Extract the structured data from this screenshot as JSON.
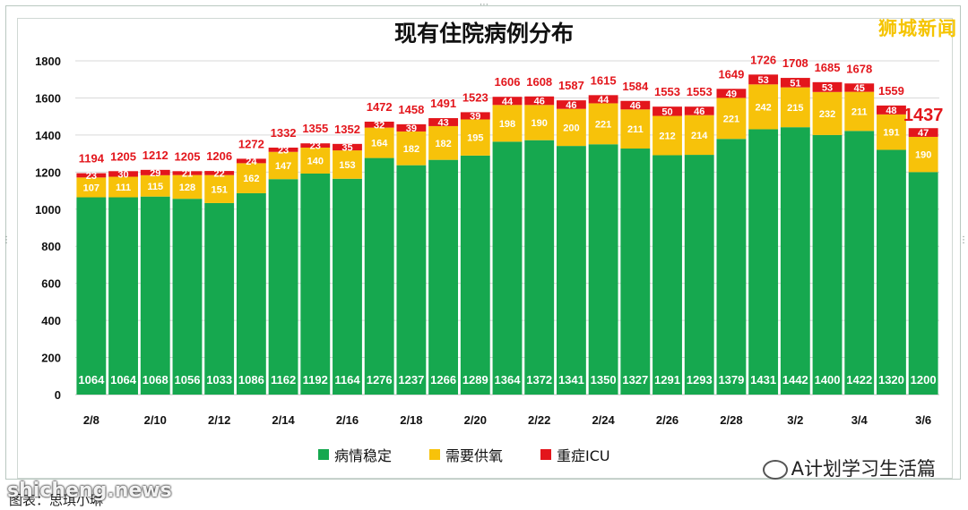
{
  "title": "现有住院病例分布",
  "brand": "狮城新闻",
  "wechat_label": "A计划学习生活篇",
  "watermark": "shicheng.news",
  "caption": "图表：思琪小琳",
  "colors": {
    "stable": "#16a84f",
    "oxygen": "#f7c20a",
    "icu": "#e3161c",
    "total_label": "#e3161c"
  },
  "chart_data": {
    "type": "bar",
    "stacked": true,
    "categories": [
      "2/8",
      "2/9",
      "2/10",
      "2/11",
      "2/12",
      "2/13",
      "2/14",
      "2/15",
      "2/16",
      "2/17",
      "2/18",
      "2/19",
      "2/20",
      "2/21",
      "2/22",
      "2/23",
      "2/24",
      "2/25",
      "2/26",
      "2/27",
      "2/28",
      "3/1",
      "3/2",
      "3/3",
      "3/4",
      "3/5",
      "3/6"
    ],
    "tick_labels": [
      "2/8",
      "",
      "2/10",
      "",
      "2/12",
      "",
      "2/14",
      "",
      "2/16",
      "",
      "2/18",
      "",
      "2/20",
      "",
      "2/22",
      "",
      "2/24",
      "",
      "2/26",
      "",
      "2/28",
      "",
      "3/2",
      "",
      "3/4",
      "",
      "3/6"
    ],
    "series": [
      {
        "name": "病情稳定",
        "values": [
          1064,
          1064,
          1068,
          1056,
          1033,
          1086,
          1162,
          1192,
          1164,
          1276,
          1237,
          1266,
          1289,
          1364,
          1372,
          1341,
          1350,
          1327,
          1291,
          1293,
          1379,
          1431,
          1442,
          1400,
          1422,
          1320,
          1200
        ]
      },
      {
        "name": "需要供氧",
        "values": [
          107,
          111,
          115,
          128,
          151,
          162,
          147,
          140,
          153,
          164,
          182,
          182,
          195,
          198,
          190,
          200,
          221,
          211,
          212,
          214,
          221,
          242,
          215,
          232,
          211,
          191,
          190
        ]
      },
      {
        "name": "重症ICU",
        "values": [
          23,
          30,
          29,
          21,
          22,
          24,
          23,
          23,
          35,
          32,
          39,
          43,
          39,
          44,
          46,
          46,
          44,
          46,
          50,
          46,
          49,
          53,
          51,
          53,
          45,
          48,
          47
        ]
      }
    ],
    "totals": [
      1194,
      1205,
      1212,
      1205,
      1206,
      1272,
      1332,
      1355,
      1352,
      1472,
      1458,
      1491,
      1523,
      1606,
      1608,
      1587,
      1615,
      1584,
      1553,
      1553,
      1649,
      1726,
      1708,
      1685,
      1678,
      1559,
      1437
    ],
    "y_ticks": [
      0,
      200,
      400,
      600,
      800,
      1000,
      1200,
      1400,
      1600,
      1800
    ],
    "ylim": [
      0,
      1800
    ],
    "grid": true,
    "legend_position": "bottom"
  }
}
